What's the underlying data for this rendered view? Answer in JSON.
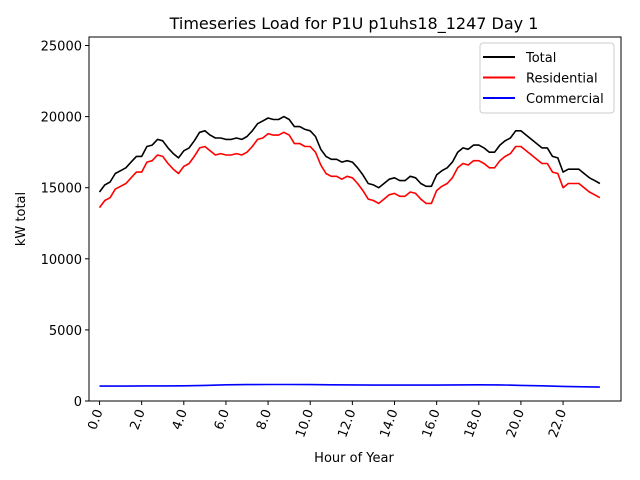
{
  "chart_data": {
    "type": "line",
    "title": "Timeseries Load for P1U p1uhs18_1247  Day 1",
    "xlabel": "Hour of Year",
    "ylabel": "kW total",
    "xlim": [
      -0.5,
      24.75
    ],
    "ylim": [
      0,
      25600
    ],
    "xticks": [
      0,
      2,
      4,
      6,
      8,
      10,
      12,
      14,
      16,
      18,
      20,
      22
    ],
    "xtick_labels": [
      "0.0",
      "2.0",
      "4.0",
      "6.0",
      "8.0",
      "10.0",
      "12.0",
      "14.0",
      "16.0",
      "18.0",
      "20.0",
      "22.0"
    ],
    "yticks": [
      0,
      5000,
      10000,
      15000,
      20000,
      25000
    ],
    "ytick_labels": [
      "0",
      "5000",
      "10000",
      "15000",
      "20000",
      "25000"
    ],
    "legend_position": "top-right",
    "series": [
      {
        "name": "Total",
        "color": "#000000",
        "points": [
          [
            0,
            14700
          ],
          [
            0.25,
            15200
          ],
          [
            0.5,
            15400
          ],
          [
            0.75,
            16000
          ],
          [
            1,
            16200
          ],
          [
            1.25,
            16400
          ],
          [
            1.5,
            16800
          ],
          [
            1.75,
            17200
          ],
          [
            2,
            17200
          ],
          [
            2.25,
            17900
          ],
          [
            2.5,
            18000
          ],
          [
            2.75,
            18400
          ],
          [
            3,
            18300
          ],
          [
            3.25,
            17800
          ],
          [
            3.5,
            17400
          ],
          [
            3.75,
            17100
          ],
          [
            4,
            17600
          ],
          [
            4.25,
            17800
          ],
          [
            4.5,
            18300
          ],
          [
            4.75,
            18900
          ],
          [
            5,
            19000
          ],
          [
            5.25,
            18700
          ],
          [
            5.5,
            18500
          ],
          [
            5.75,
            18500
          ],
          [
            6,
            18400
          ],
          [
            6.25,
            18400
          ],
          [
            6.5,
            18500
          ],
          [
            6.75,
            18400
          ],
          [
            7,
            18600
          ],
          [
            7.25,
            19000
          ],
          [
            7.5,
            19500
          ],
          [
            7.75,
            19700
          ],
          [
            8,
            19900
          ],
          [
            8.25,
            19800
          ],
          [
            8.5,
            19800
          ],
          [
            8.75,
            20000
          ],
          [
            9,
            19800
          ],
          [
            9.25,
            19300
          ],
          [
            9.5,
            19300
          ],
          [
            9.75,
            19100
          ],
          [
            10,
            19000
          ],
          [
            10.25,
            18600
          ],
          [
            10.5,
            17700
          ],
          [
            10.75,
            17200
          ],
          [
            11,
            17000
          ],
          [
            11.25,
            17000
          ],
          [
            11.5,
            16800
          ],
          [
            11.75,
            16900
          ],
          [
            12,
            16800
          ],
          [
            12.25,
            16400
          ],
          [
            12.5,
            15900
          ],
          [
            12.75,
            15300
          ],
          [
            13,
            15200
          ],
          [
            13.25,
            15000
          ],
          [
            13.5,
            15300
          ],
          [
            13.75,
            15600
          ],
          [
            14,
            15700
          ],
          [
            14.25,
            15500
          ],
          [
            14.5,
            15500
          ],
          [
            14.75,
            15800
          ],
          [
            15,
            15700
          ],
          [
            15.25,
            15300
          ],
          [
            15.5,
            15100
          ],
          [
            15.75,
            15100
          ],
          [
            16,
            15900
          ],
          [
            16.25,
            16200
          ],
          [
            16.5,
            16400
          ],
          [
            16.75,
            16800
          ],
          [
            17,
            17500
          ],
          [
            17.25,
            17800
          ],
          [
            17.5,
            17700
          ],
          [
            17.75,
            18000
          ],
          [
            18,
            18000
          ],
          [
            18.25,
            17800
          ],
          [
            18.5,
            17500
          ],
          [
            18.75,
            17500
          ],
          [
            19,
            18000
          ],
          [
            19.25,
            18300
          ],
          [
            19.5,
            18500
          ],
          [
            19.75,
            19000
          ],
          [
            20,
            19000
          ],
          [
            20.25,
            18700
          ],
          [
            20.5,
            18400
          ],
          [
            20.75,
            18100
          ],
          [
            21,
            17800
          ],
          [
            21.25,
            17800
          ],
          [
            21.5,
            17200
          ],
          [
            21.75,
            17100
          ],
          [
            22,
            16100
          ],
          [
            22.25,
            16300
          ],
          [
            22.5,
            16300
          ],
          [
            22.75,
            16300
          ],
          [
            23,
            16000
          ],
          [
            23.25,
            15700
          ],
          [
            23.5,
            15500
          ],
          [
            23.75,
            15300
          ]
        ]
      },
      {
        "name": "Residential",
        "color": "#ff0000",
        "points": [
          [
            0,
            13600
          ],
          [
            0.25,
            14100
          ],
          [
            0.5,
            14300
          ],
          [
            0.75,
            14900
          ],
          [
            1,
            15100
          ],
          [
            1.25,
            15300
          ],
          [
            1.5,
            15700
          ],
          [
            1.75,
            16100
          ],
          [
            2,
            16100
          ],
          [
            2.25,
            16800
          ],
          [
            2.5,
            16900
          ],
          [
            2.75,
            17300
          ],
          [
            3,
            17200
          ],
          [
            3.25,
            16700
          ],
          [
            3.5,
            16300
          ],
          [
            3.75,
            16000
          ],
          [
            4,
            16500
          ],
          [
            4.25,
            16700
          ],
          [
            4.5,
            17200
          ],
          [
            4.75,
            17800
          ],
          [
            5,
            17900
          ],
          [
            5.25,
            17600
          ],
          [
            5.5,
            17300
          ],
          [
            5.75,
            17400
          ],
          [
            6,
            17300
          ],
          [
            6.25,
            17300
          ],
          [
            6.5,
            17400
          ],
          [
            6.75,
            17300
          ],
          [
            7,
            17500
          ],
          [
            7.25,
            17900
          ],
          [
            7.5,
            18400
          ],
          [
            7.75,
            18500
          ],
          [
            8,
            18800
          ],
          [
            8.25,
            18700
          ],
          [
            8.5,
            18700
          ],
          [
            8.75,
            18900
          ],
          [
            9,
            18700
          ],
          [
            9.25,
            18100
          ],
          [
            9.5,
            18100
          ],
          [
            9.75,
            17900
          ],
          [
            10,
            17900
          ],
          [
            10.25,
            17500
          ],
          [
            10.5,
            16600
          ],
          [
            10.75,
            16000
          ],
          [
            11,
            15800
          ],
          [
            11.25,
            15800
          ],
          [
            11.5,
            15600
          ],
          [
            11.75,
            15800
          ],
          [
            12,
            15700
          ],
          [
            12.25,
            15300
          ],
          [
            12.5,
            14800
          ],
          [
            12.75,
            14200
          ],
          [
            13,
            14100
          ],
          [
            13.25,
            13900
          ],
          [
            13.5,
            14200
          ],
          [
            13.75,
            14500
          ],
          [
            14,
            14600
          ],
          [
            14.25,
            14400
          ],
          [
            14.5,
            14400
          ],
          [
            14.75,
            14700
          ],
          [
            15,
            14600
          ],
          [
            15.25,
            14200
          ],
          [
            15.5,
            13900
          ],
          [
            15.75,
            13900
          ],
          [
            16,
            14800
          ],
          [
            16.25,
            15100
          ],
          [
            16.5,
            15300
          ],
          [
            16.75,
            15700
          ],
          [
            17,
            16400
          ],
          [
            17.25,
            16700
          ],
          [
            17.5,
            16600
          ],
          [
            17.75,
            16900
          ],
          [
            18,
            16900
          ],
          [
            18.25,
            16700
          ],
          [
            18.5,
            16400
          ],
          [
            18.75,
            16400
          ],
          [
            19,
            16900
          ],
          [
            19.25,
            17200
          ],
          [
            19.5,
            17400
          ],
          [
            19.75,
            17900
          ],
          [
            20,
            17900
          ],
          [
            20.25,
            17600
          ],
          [
            20.5,
            17300
          ],
          [
            20.75,
            17000
          ],
          [
            21,
            16700
          ],
          [
            21.25,
            16700
          ],
          [
            21.5,
            16100
          ],
          [
            21.75,
            16000
          ],
          [
            22,
            15000
          ],
          [
            22.25,
            15300
          ],
          [
            22.5,
            15300
          ],
          [
            22.75,
            15300
          ],
          [
            23,
            15000
          ],
          [
            23.25,
            14700
          ],
          [
            23.5,
            14500
          ],
          [
            23.75,
            14300
          ]
        ]
      },
      {
        "name": "Commercial",
        "color": "#0000ff",
        "points": [
          [
            0,
            1050
          ],
          [
            1,
            1050
          ],
          [
            2,
            1060
          ],
          [
            3,
            1060
          ],
          [
            4,
            1070
          ],
          [
            5,
            1100
          ],
          [
            6,
            1140
          ],
          [
            7,
            1150
          ],
          [
            8,
            1160
          ],
          [
            9,
            1160
          ],
          [
            10,
            1150
          ],
          [
            11,
            1140
          ],
          [
            12,
            1130
          ],
          [
            13,
            1120
          ],
          [
            14,
            1120
          ],
          [
            15,
            1120
          ],
          [
            16,
            1120
          ],
          [
            17,
            1130
          ],
          [
            18,
            1140
          ],
          [
            19,
            1130
          ],
          [
            20,
            1100
          ],
          [
            21,
            1070
          ],
          [
            22,
            1030
          ],
          [
            23,
            1000
          ],
          [
            23.75,
            980
          ]
        ]
      }
    ]
  }
}
